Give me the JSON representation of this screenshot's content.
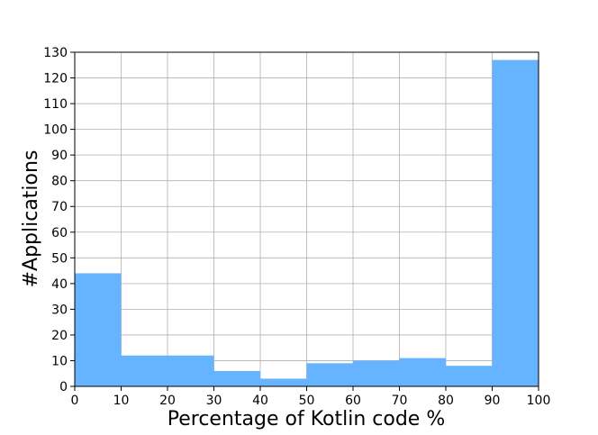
{
  "chart_data": {
    "type": "bar",
    "xlabel": "Percentage of Kotlin code %",
    "ylabel": "#Applications",
    "bins": [
      {
        "from": 0,
        "to": 10,
        "value": 44
      },
      {
        "from": 10,
        "to": 20,
        "value": 12
      },
      {
        "from": 20,
        "to": 30,
        "value": 12
      },
      {
        "from": 30,
        "to": 40,
        "value": 6
      },
      {
        "from": 40,
        "to": 50,
        "value": 3
      },
      {
        "from": 50,
        "to": 60,
        "value": 9
      },
      {
        "from": 60,
        "to": 70,
        "value": 10
      },
      {
        "from": 70,
        "to": 80,
        "value": 11
      },
      {
        "from": 80,
        "to": 90,
        "value": 8
      },
      {
        "from": 90,
        "to": 100,
        "value": 127
      }
    ],
    "xlim": [
      0,
      100
    ],
    "ylim": [
      0,
      130
    ],
    "xticks": [
      "0",
      "10",
      "20",
      "30",
      "40",
      "50",
      "60",
      "70",
      "80",
      "90",
      "100"
    ],
    "yticks": [
      "0",
      "10",
      "20",
      "30",
      "40",
      "50",
      "60",
      "70",
      "80",
      "90",
      "100",
      "110",
      "120",
      "130"
    ],
    "grid": true,
    "bar_color": "#66b3ff",
    "grid_color": "#b0b0b0"
  }
}
